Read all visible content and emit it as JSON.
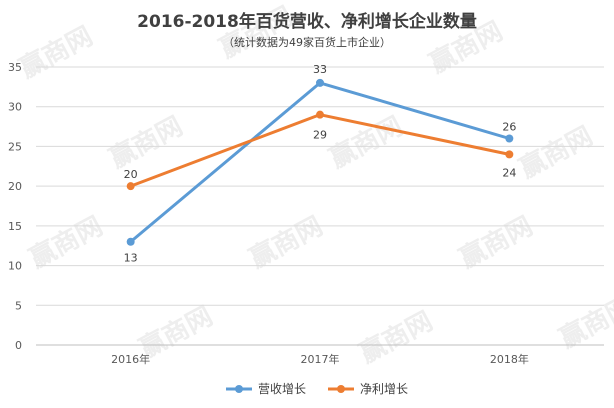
{
  "chart_data": {
    "type": "line",
    "title": "2016-2018年百货营收、净利增长企业数量",
    "subtitle": "（统计数据为49家百货上市企业）",
    "categories": [
      "2016年",
      "2017年",
      "2018年"
    ],
    "series": [
      {
        "name": "营收增长",
        "values": [
          13,
          33,
          26
        ],
        "color": "#5B9BD5"
      },
      {
        "name": "净利增长",
        "values": [
          20,
          29,
          24
        ],
        "color": "#ED7D31"
      }
    ],
    "ylim": [
      0,
      35
    ],
    "yticks": [
      0,
      5,
      10,
      15,
      20,
      25,
      30,
      35
    ],
    "grid": true,
    "legend": "bottom"
  },
  "watermark": {
    "text": "赢商网"
  }
}
